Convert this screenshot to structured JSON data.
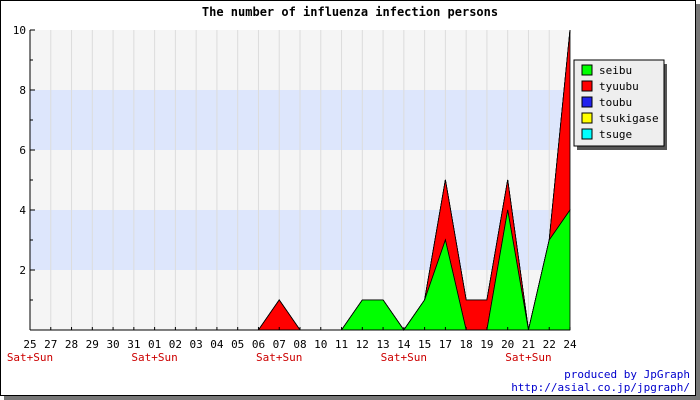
{
  "chart_data": {
    "type": "area",
    "stacked": true,
    "title": "The number of influenza infection persons",
    "x": [
      "25",
      "27",
      "28",
      "29",
      "30",
      "31",
      "01",
      "02",
      "03",
      "04",
      "05",
      "06",
      "07",
      "08",
      "10",
      "11",
      "12",
      "13",
      "14",
      "15",
      "17",
      "18",
      "19",
      "20",
      "21",
      "22",
      "24"
    ],
    "weekend_labels": [
      {
        "index": 0,
        "text": "Sat+Sun"
      },
      {
        "index": 6,
        "text": "Sat+Sun"
      },
      {
        "index": 12,
        "text": "Sat+Sun"
      },
      {
        "index": 18,
        "text": "Sat+Sun"
      },
      {
        "index": 24,
        "text": "Sat+Sun"
      }
    ],
    "series": [
      {
        "name": "seibu",
        "color": "#00ff00",
        "values": [
          0,
          0,
          0,
          0,
          0,
          0,
          0,
          0,
          0,
          0,
          0,
          0,
          0,
          0,
          0,
          0,
          1,
          1,
          0,
          1,
          3,
          0,
          0,
          4,
          0,
          3,
          4
        ]
      },
      {
        "name": "tyuubu",
        "color": "#ff0000",
        "values": [
          0,
          0,
          0,
          0,
          0,
          0,
          0,
          0,
          0,
          0,
          0,
          0,
          1,
          0,
          0,
          0,
          0,
          0,
          0,
          0,
          2,
          1,
          1,
          1,
          0,
          0,
          6
        ]
      },
      {
        "name": "toubu",
        "color": "#2222ee",
        "values": [
          0,
          0,
          0,
          0,
          0,
          0,
          0,
          0,
          0,
          0,
          0,
          0,
          0,
          0,
          0,
          0,
          0,
          0,
          0,
          0,
          0,
          0,
          0,
          0,
          0,
          0,
          0
        ]
      },
      {
        "name": "tsukigase",
        "color": "#ffff00",
        "values": [
          0,
          0,
          0,
          0,
          0,
          0,
          0,
          0,
          0,
          0,
          0,
          0,
          0,
          0,
          0,
          0,
          0,
          0,
          0,
          0,
          0,
          0,
          0,
          0,
          0,
          0,
          0
        ]
      },
      {
        "name": "tsuge",
        "color": "#00ffff",
        "values": [
          0,
          0,
          0,
          0,
          0,
          0,
          0,
          0,
          0,
          0,
          0,
          0,
          0,
          0,
          0,
          0,
          0,
          0,
          0,
          0,
          0,
          0,
          0,
          0,
          0,
          0,
          0
        ]
      }
    ],
    "ylim": [
      0,
      10
    ],
    "yticks": [
      2,
      4,
      6,
      8,
      10
    ],
    "grid": true,
    "band_color": "#dde6fc",
    "legend_position": "top-right"
  },
  "credits": {
    "line1": "produced by JpGraph",
    "line2": "http://asial.co.jp/jpgraph/"
  },
  "colors": {
    "weekend_label": "#cc0000",
    "credits": "#0000cc",
    "plot_background": "#f5f5f5"
  }
}
